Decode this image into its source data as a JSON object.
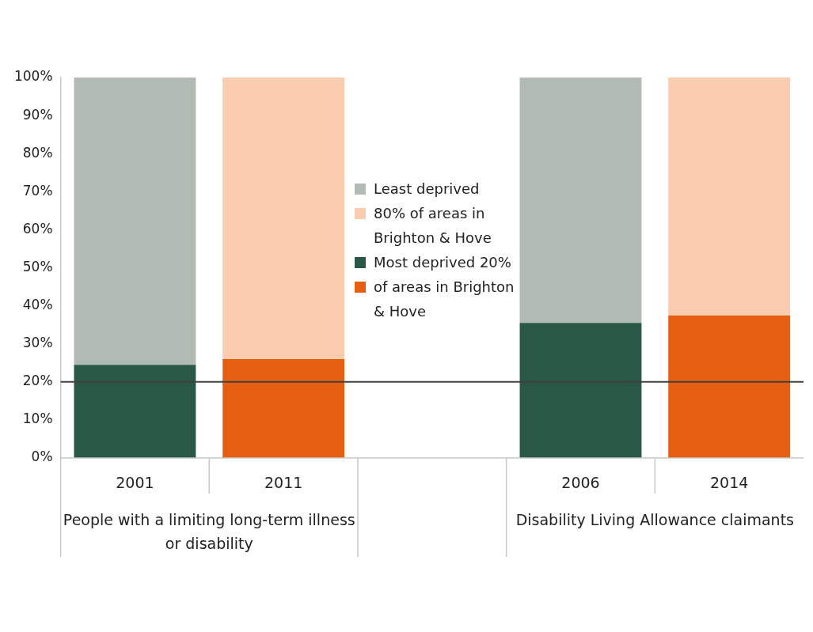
{
  "chart_data": {
    "type": "bar",
    "stacked": true,
    "categories": [
      "2001",
      "2011",
      null,
      "2006",
      "2014"
    ],
    "series": [
      {
        "name": "Most deprived 20% of areas in Brighton & Hove",
        "colors": [
          "#2a5846",
          "#e55f10",
          "#2a5846",
          "#2a5846",
          "#e55f10"
        ],
        "values": [
          24.5,
          26,
          null,
          35.5,
          37.5
        ]
      },
      {
        "name": "Least deprived 80% of areas in Brighton & Hove",
        "colors": [
          "#b2bbb3",
          "#f9cdae",
          "#b2bbb3",
          "#b2bbb3",
          "#f9cdae"
        ],
        "values": [
          75.5,
          74,
          null,
          64.5,
          62.5
        ]
      }
    ],
    "ylim": [
      0,
      100
    ],
    "yticks": [
      {
        "value": 0,
        "label": "0%"
      },
      {
        "value": 10,
        "label": "10%"
      },
      {
        "value": 20,
        "label": "20%"
      },
      {
        "value": 30,
        "label": "30%"
      },
      {
        "value": 40,
        "label": "40%"
      },
      {
        "value": 50,
        "label": "50%"
      },
      {
        "value": 60,
        "label": "60%"
      },
      {
        "value": 70,
        "label": "70%"
      },
      {
        "value": 80,
        "label": "80%"
      },
      {
        "value": 90,
        "label": "90%"
      },
      {
        "value": 100,
        "label": "100%"
      }
    ],
    "ref_lines": [
      {
        "axis": "y",
        "value": 20,
        "color": "#404040"
      }
    ],
    "annotations": [
      "People with a limiting long-term illness or disability",
      "Disability Living Allowance claimants"
    ],
    "grid": false,
    "legend": "top"
  }
}
